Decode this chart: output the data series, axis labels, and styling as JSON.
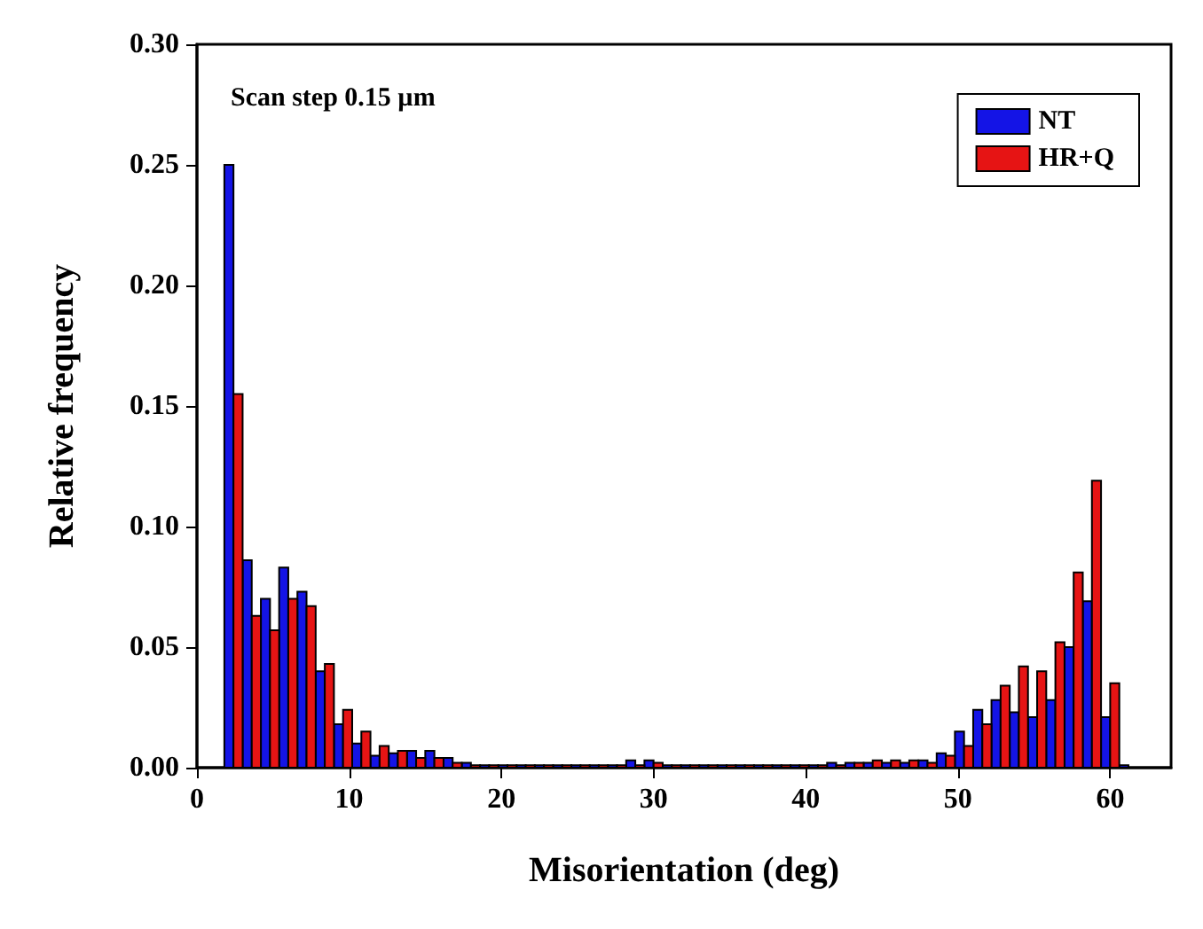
{
  "chart_data": {
    "type": "histogram",
    "xlabel": "Misorientation (deg)",
    "ylabel": "Relative frequency",
    "annotations": [
      "Scan step 0.15 µm"
    ],
    "bins": [
      1.8,
      3,
      4.2,
      5.4,
      6.6,
      7.8,
      9,
      10.2,
      11.4,
      12.6,
      13.8,
      15,
      16.2,
      17.4,
      18.6,
      19.8,
      21,
      22.2,
      23.4,
      24.6,
      25.8,
      27,
      28.2,
      29.4,
      30.6,
      31.8,
      33,
      34.2,
      35.4,
      36.6,
      37.8,
      39,
      40.2,
      41.4,
      42.6,
      43.8,
      45,
      46.2,
      47.4,
      48.6,
      49.8,
      51,
      52.2,
      53.4,
      54.6,
      55.8,
      57,
      58.2,
      59.4,
      60.6,
      61.8
    ],
    "series": [
      {
        "name": "NT",
        "color": "#1414e6",
        "values": [
          0.25,
          0.086,
          0.07,
          0.083,
          0.073,
          0.04,
          0.018,
          0.01,
          0.005,
          0.006,
          0.007,
          0.007,
          0.004,
          0.002,
          0.001,
          0.001,
          0.001,
          0.001,
          0.001,
          0.001,
          0.001,
          0.001,
          0.003,
          0.003,
          0.001,
          0.001,
          0.001,
          0.001,
          0.001,
          0.001,
          0.001,
          0.001,
          0.001,
          0.002,
          0.002,
          0.002,
          0.002,
          0.002,
          0.003,
          0.006,
          0.015,
          0.024,
          0.028,
          0.023,
          0.021,
          0.028,
          0.05,
          0.069,
          0.021,
          0.001
        ]
      },
      {
        "name": "HR+Q",
        "color": "#e61414",
        "values": [
          0.155,
          0.063,
          0.057,
          0.07,
          0.067,
          0.043,
          0.024,
          0.015,
          0.009,
          0.007,
          0.004,
          0.004,
          0.002,
          0.001,
          0.001,
          0.001,
          0.001,
          0.001,
          0.001,
          0.001,
          0.001,
          0.001,
          0.001,
          0.002,
          0.001,
          0.001,
          0.001,
          0.001,
          0.001,
          0.001,
          0.001,
          0.001,
          0.001,
          0.001,
          0.002,
          0.003,
          0.003,
          0.003,
          0.002,
          0.005,
          0.009,
          0.018,
          0.034,
          0.042,
          0.04,
          0.052,
          0.081,
          0.119,
          0.035,
          null
        ]
      }
    ],
    "xlim": [
      0,
      64
    ],
    "xticks": [
      0,
      10,
      20,
      30,
      40,
      50,
      60
    ],
    "ylim": [
      0,
      0.3
    ],
    "yticks": [
      {
        "value": 0,
        "label": "0.00"
      },
      {
        "value": 0.05,
        "label": "0.05"
      },
      {
        "value": 0.1,
        "label": "0.10"
      },
      {
        "value": 0.15,
        "label": "0.15"
      },
      {
        "value": 0.2,
        "label": "0.20"
      },
      {
        "value": 0.25,
        "label": "0.25"
      },
      {
        "value": 0.3,
        "label": "0.30"
      }
    ],
    "legend": "top right",
    "grid": false
  }
}
